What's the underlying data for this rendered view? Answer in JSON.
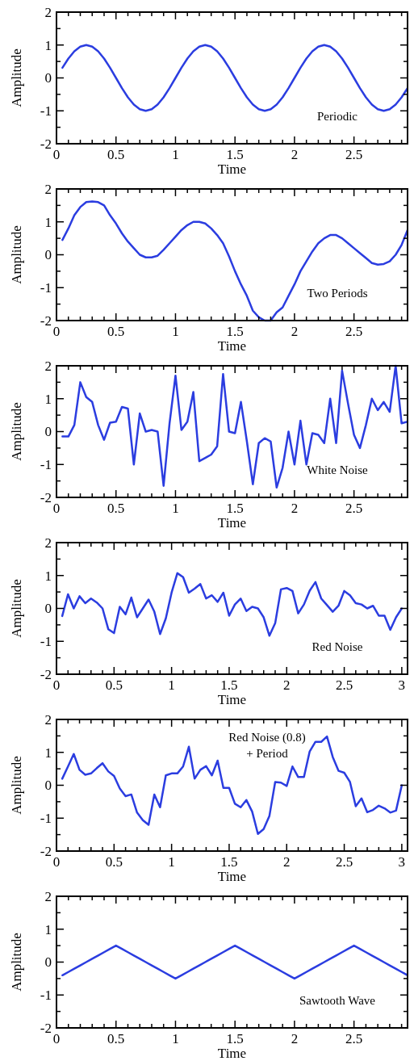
{
  "chart_data": [
    {
      "type": "line",
      "xlabel": "Time",
      "ylabel": "Amplitude",
      "color": "#2b3de0",
      "xlim": [
        0,
        2.95
      ],
      "ylim": [
        -2,
        2
      ],
      "xticks": [
        0,
        {
          "value": 0.1,
          "label": null
        },
        {
          "value": 0.2,
          "label": null
        },
        {
          "value": 0.3,
          "label": null
        },
        {
          "value": 0.4,
          "label": null
        },
        0.5,
        {
          "value": 0.6,
          "label": null
        },
        {
          "value": 0.7,
          "label": null
        },
        {
          "value": 0.8,
          "label": null
        },
        {
          "value": 0.9,
          "label": null
        },
        1,
        {
          "value": 1.1,
          "label": null
        },
        {
          "value": 1.2,
          "label": null
        },
        {
          "value": 1.3,
          "label": null
        },
        {
          "value": 1.4,
          "label": null
        },
        1.5,
        {
          "value": 1.6,
          "label": null
        },
        {
          "value": 1.7,
          "label": null
        },
        {
          "value": 1.8,
          "label": null
        },
        {
          "value": 1.9,
          "label": null
        },
        2,
        {
          "value": 2.1,
          "label": null
        },
        {
          "value": 2.2,
          "label": null
        },
        {
          "value": 2.3,
          "label": null
        },
        {
          "value": 2.4,
          "label": null
        },
        2.5,
        {
          "value": 2.6,
          "label": null
        },
        {
          "value": 2.7,
          "label": null
        },
        {
          "value": 2.8,
          "label": null
        },
        {
          "value": 2.9,
          "label": null
        }
      ],
      "yticks": [
        -2,
        {
          "value": -1.5,
          "label": null
        },
        -1,
        {
          "value": -0.5,
          "label": null
        },
        0,
        {
          "value": 0.5,
          "label": null
        },
        1,
        {
          "value": 1.5,
          "label": null
        },
        2
      ],
      "annotations": [
        "Periodic"
      ],
      "x": [
        0.05,
        0.1,
        0.15,
        0.2,
        0.25,
        0.3,
        0.35,
        0.4,
        0.45,
        0.5,
        0.55,
        0.6,
        0.65,
        0.7,
        0.75,
        0.8,
        0.85,
        0.9,
        0.95,
        1,
        1.05,
        1.1,
        1.15,
        1.2,
        1.25,
        1.3,
        1.35,
        1.4,
        1.45,
        1.5,
        1.55,
        1.6,
        1.65,
        1.7,
        1.75,
        1.8,
        1.85,
        1.9,
        1.95,
        2,
        2.05,
        2.1,
        2.15,
        2.2,
        2.25,
        2.3,
        2.35,
        2.4,
        2.45,
        2.5,
        2.55,
        2.6,
        2.65,
        2.7,
        2.75,
        2.8,
        2.85,
        2.9,
        2.95
      ],
      "values": [
        0.31,
        0.59,
        0.81,
        0.95,
        1,
        0.95,
        0.81,
        0.59,
        0.31,
        0,
        -0.31,
        -0.59,
        -0.81,
        -0.95,
        -1,
        -0.95,
        -0.81,
        -0.59,
        -0.31,
        0,
        0.31,
        0.59,
        0.81,
        0.95,
        1,
        0.95,
        0.81,
        0.59,
        0.31,
        0,
        -0.31,
        -0.59,
        -0.81,
        -0.95,
        -1,
        -0.95,
        -0.81,
        -0.59,
        -0.31,
        0,
        0.31,
        0.59,
        0.81,
        0.95,
        1,
        0.95,
        0.81,
        0.59,
        0.31,
        0,
        -0.31,
        -0.59,
        -0.81,
        -0.95,
        -1,
        -0.95,
        -0.81,
        -0.59,
        -0.31
      ]
    },
    {
      "type": "line",
      "xlabel": "Time",
      "ylabel": "Amplitude",
      "color": "#2b3de0",
      "xlim": [
        0,
        2.95
      ],
      "ylim": [
        -2,
        2
      ],
      "xticks": [
        0,
        {
          "value": 0.1,
          "label": null
        },
        {
          "value": 0.2,
          "label": null
        },
        {
          "value": 0.3,
          "label": null
        },
        {
          "value": 0.4,
          "label": null
        },
        0.5,
        {
          "value": 0.6,
          "label": null
        },
        {
          "value": 0.7,
          "label": null
        },
        {
          "value": 0.8,
          "label": null
        },
        {
          "value": 0.9,
          "label": null
        },
        1,
        {
          "value": 1.1,
          "label": null
        },
        {
          "value": 1.2,
          "label": null
        },
        {
          "value": 1.3,
          "label": null
        },
        {
          "value": 1.4,
          "label": null
        },
        1.5,
        {
          "value": 1.6,
          "label": null
        },
        {
          "value": 1.7,
          "label": null
        },
        {
          "value": 1.8,
          "label": null
        },
        {
          "value": 1.9,
          "label": null
        },
        2,
        {
          "value": 2.1,
          "label": null
        },
        {
          "value": 2.2,
          "label": null
        },
        {
          "value": 2.3,
          "label": null
        },
        {
          "value": 2.4,
          "label": null
        },
        2.5,
        {
          "value": 2.6,
          "label": null
        },
        {
          "value": 2.7,
          "label": null
        },
        {
          "value": 2.8,
          "label": null
        },
        {
          "value": 2.9,
          "label": null
        }
      ],
      "yticks": [
        -2,
        {
          "value": -1.5,
          "label": null
        },
        -1,
        {
          "value": -0.5,
          "label": null
        },
        0,
        {
          "value": 0.5,
          "label": null
        },
        1,
        {
          "value": 1.5,
          "label": null
        },
        2
      ],
      "annotations": [
        "Two Periods"
      ],
      "x": [
        0.05,
        0.1,
        0.15,
        0.2,
        0.25,
        0.3,
        0.35,
        0.4,
        0.45,
        0.5,
        0.55,
        0.6,
        0.65,
        0.7,
        0.75,
        0.8,
        0.85,
        0.9,
        0.95,
        1,
        1.05,
        1.1,
        1.15,
        1.2,
        1.25,
        1.3,
        1.35,
        1.4,
        1.45,
        1.5,
        1.55,
        1.6,
        1.65,
        1.7,
        1.75,
        1.8,
        1.85,
        1.9,
        1.95,
        2,
        2.05,
        2.1,
        2.15,
        2.2,
        2.25,
        2.3,
        2.35,
        2.4,
        2.45,
        2.5,
        2.55,
        2.6,
        2.65,
        2.7,
        2.75,
        2.8,
        2.85,
        2.9,
        2.95
      ],
      "values": [
        0.45,
        0.8,
        1.2,
        1.45,
        1.6,
        1.62,
        1.6,
        1.5,
        1.2,
        0.95,
        0.65,
        0.4,
        0.2,
        0,
        -0.08,
        -0.08,
        -0.03,
        0.15,
        0.35,
        0.55,
        0.75,
        0.9,
        1,
        1,
        0.95,
        0.8,
        0.6,
        0.35,
        -0.05,
        -0.5,
        -0.9,
        -1.25,
        -1.7,
        -1.9,
        -2,
        -2,
        -1.75,
        -1.6,
        -1.25,
        -0.9,
        -0.5,
        -0.2,
        0.1,
        0.35,
        0.5,
        0.6,
        0.6,
        0.5,
        0.35,
        0.2,
        0.05,
        -0.1,
        -0.25,
        -0.3,
        -0.28,
        -0.2,
        0,
        0.3,
        0.75
      ]
    },
    {
      "type": "line",
      "xlabel": "Time",
      "ylabel": "Amplitude",
      "color": "#2b3de0",
      "xlim": [
        0,
        2.95
      ],
      "ylim": [
        -2,
        2
      ],
      "xticks": [
        0,
        {
          "value": 0.1,
          "label": null
        },
        {
          "value": 0.2,
          "label": null
        },
        {
          "value": 0.3,
          "label": null
        },
        {
          "value": 0.4,
          "label": null
        },
        0.5,
        {
          "value": 0.6,
          "label": null
        },
        {
          "value": 0.7,
          "label": null
        },
        {
          "value": 0.8,
          "label": null
        },
        {
          "value": 0.9,
          "label": null
        },
        1,
        {
          "value": 1.1,
          "label": null
        },
        {
          "value": 1.2,
          "label": null
        },
        {
          "value": 1.3,
          "label": null
        },
        {
          "value": 1.4,
          "label": null
        },
        1.5,
        {
          "value": 1.6,
          "label": null
        },
        {
          "value": 1.7,
          "label": null
        },
        {
          "value": 1.8,
          "label": null
        },
        {
          "value": 1.9,
          "label": null
        },
        2,
        {
          "value": 2.1,
          "label": null
        },
        {
          "value": 2.2,
          "label": null
        },
        {
          "value": 2.3,
          "label": null
        },
        {
          "value": 2.4,
          "label": null
        },
        2.5,
        {
          "value": 2.6,
          "label": null
        },
        {
          "value": 2.7,
          "label": null
        },
        {
          "value": 2.8,
          "label": null
        },
        {
          "value": 2.9,
          "label": null
        }
      ],
      "yticks": [
        -2,
        {
          "value": -1.5,
          "label": null
        },
        -1,
        {
          "value": -0.5,
          "label": null
        },
        0,
        {
          "value": 0.5,
          "label": null
        },
        1,
        {
          "value": 1.5,
          "label": null
        },
        2
      ],
      "annotations": [
        "White Noise"
      ],
      "x": [
        0.05,
        0.1,
        0.15,
        0.2,
        0.25,
        0.3,
        0.35,
        0.4,
        0.45,
        0.5,
        0.55,
        0.6,
        0.65,
        0.7,
        0.75,
        0.8,
        0.85,
        0.9,
        0.95,
        1,
        1.05,
        1.1,
        1.15,
        1.2,
        1.25,
        1.3,
        1.35,
        1.4,
        1.45,
        1.5,
        1.55,
        1.6,
        1.65,
        1.7,
        1.75,
        1.8,
        1.85,
        1.9,
        1.95,
        2,
        2.05,
        2.1,
        2.15,
        2.2,
        2.25,
        2.3,
        2.35,
        2.4,
        2.45,
        2.5,
        2.55,
        2.6,
        2.65,
        2.7,
        2.75,
        2.8,
        2.85,
        2.9,
        2.95
      ],
      "values": [
        -0.15,
        -0.15,
        0.2,
        1.5,
        1.05,
        0.9,
        0.2,
        -0.25,
        0.27,
        0.3,
        0.75,
        0.7,
        -1,
        0.55,
        0,
        0.05,
        0,
        -1.65,
        0.25,
        1.7,
        0.05,
        0.3,
        1.2,
        -0.9,
        -0.8,
        -0.7,
        -0.45,
        1.75,
        0,
        -0.05,
        0.9,
        -0.3,
        -1.6,
        -0.35,
        -0.2,
        -0.3,
        -1.7,
        -1.1,
        0,
        -1,
        0.33,
        -1,
        -0.05,
        -0.1,
        -0.35,
        1,
        -0.35,
        1.85,
        0.85,
        -0.1,
        -0.5,
        0.2,
        1,
        0.65,
        0.9,
        0.6,
        2,
        0.25,
        0.3
      ]
    },
    {
      "type": "line",
      "xlabel": "Time",
      "ylabel": "Amplitude",
      "color": "#2b3de0",
      "xlim": [
        0,
        3.05
      ],
      "ylim": [
        -2,
        2
      ],
      "xticks": [
        0,
        {
          "value": 0.1,
          "label": null
        },
        {
          "value": 0.2,
          "label": null
        },
        {
          "value": 0.3,
          "label": null
        },
        {
          "value": 0.4,
          "label": null
        },
        0.5,
        {
          "value": 0.6,
          "label": null
        },
        {
          "value": 0.7,
          "label": null
        },
        {
          "value": 0.8,
          "label": null
        },
        {
          "value": 0.9,
          "label": null
        },
        1,
        {
          "value": 1.1,
          "label": null
        },
        {
          "value": 1.2,
          "label": null
        },
        {
          "value": 1.3,
          "label": null
        },
        {
          "value": 1.4,
          "label": null
        },
        1.5,
        {
          "value": 1.6,
          "label": null
        },
        {
          "value": 1.7,
          "label": null
        },
        {
          "value": 1.8,
          "label": null
        },
        {
          "value": 1.9,
          "label": null
        },
        2,
        {
          "value": 2.1,
          "label": null
        },
        {
          "value": 2.2,
          "label": null
        },
        {
          "value": 2.3,
          "label": null
        },
        {
          "value": 2.4,
          "label": null
        },
        2.5,
        {
          "value": 2.6,
          "label": null
        },
        {
          "value": 2.7,
          "label": null
        },
        {
          "value": 2.8,
          "label": null
        },
        {
          "value": 2.9,
          "label": null
        },
        3
      ],
      "yticks": [
        -2,
        {
          "value": -1.5,
          "label": null
        },
        -1,
        {
          "value": -0.5,
          "label": null
        },
        0,
        {
          "value": 0.5,
          "label": null
        },
        1,
        {
          "value": 1.5,
          "label": null
        },
        2
      ],
      "annotations": [
        "Red Noise"
      ],
      "x": [
        0.05,
        0.1,
        0.15,
        0.2,
        0.25,
        0.3,
        0.35,
        0.4,
        0.45,
        0.5,
        0.55,
        0.6,
        0.65,
        0.7,
        0.75,
        0.8,
        0.85,
        0.9,
        0.95,
        1,
        1.05,
        1.1,
        1.15,
        1.2,
        1.25,
        1.3,
        1.35,
        1.4,
        1.45,
        1.5,
        1.55,
        1.6,
        1.65,
        1.7,
        1.75,
        1.8,
        1.85,
        1.9,
        1.95,
        2,
        2.05,
        2.1,
        2.15,
        2.2,
        2.25,
        2.3,
        2.35,
        2.4,
        2.45,
        2.5,
        2.55,
        2.6,
        2.65,
        2.7,
        2.75,
        2.8,
        2.85,
        2.9,
        2.95,
        3
      ],
      "values": [
        -0.23,
        0.43,
        0,
        0.37,
        0.16,
        0.3,
        0.18,
        0,
        -0.63,
        -0.75,
        0.05,
        -0.18,
        0.33,
        -0.27,
        0,
        0.27,
        -0.1,
        -0.78,
        -0.3,
        0.48,
        1.07,
        0.95,
        0.48,
        0.6,
        0.74,
        0.3,
        0.4,
        0.2,
        0.48,
        -0.22,
        0.12,
        0.3,
        -0.08,
        0.05,
        0,
        -0.27,
        -0.83,
        -0.45,
        0.58,
        0.62,
        0.53,
        -0.15,
        0.12,
        0.54,
        0.8,
        0.3,
        0.1,
        -0.1,
        0.08,
        0.53,
        0.4,
        0.16,
        0.12,
        0,
        0.08,
        -0.22,
        -0.22,
        -0.65,
        -0.27,
        0
      ]
    },
    {
      "type": "line",
      "xlabel": "Time",
      "ylabel": "Amplitude",
      "color": "#2b3de0",
      "xlim": [
        0,
        3.05
      ],
      "ylim": [
        -2,
        2
      ],
      "xticks": [
        0,
        {
          "value": 0.1,
          "label": null
        },
        {
          "value": 0.2,
          "label": null
        },
        {
          "value": 0.3,
          "label": null
        },
        {
          "value": 0.4,
          "label": null
        },
        0.5,
        {
          "value": 0.6,
          "label": null
        },
        {
          "value": 0.7,
          "label": null
        },
        {
          "value": 0.8,
          "label": null
        },
        {
          "value": 0.9,
          "label": null
        },
        1,
        {
          "value": 1.1,
          "label": null
        },
        {
          "value": 1.2,
          "label": null
        },
        {
          "value": 1.3,
          "label": null
        },
        {
          "value": 1.4,
          "label": null
        },
        1.5,
        {
          "value": 1.6,
          "label": null
        },
        {
          "value": 1.7,
          "label": null
        },
        {
          "value": 1.8,
          "label": null
        },
        {
          "value": 1.9,
          "label": null
        },
        2,
        {
          "value": 2.1,
          "label": null
        },
        {
          "value": 2.2,
          "label": null
        },
        {
          "value": 2.3,
          "label": null
        },
        {
          "value": 2.4,
          "label": null
        },
        2.5,
        {
          "value": 2.6,
          "label": null
        },
        {
          "value": 2.7,
          "label": null
        },
        {
          "value": 2.8,
          "label": null
        },
        {
          "value": 2.9,
          "label": null
        },
        3
      ],
      "yticks": [
        -2,
        {
          "value": -1.5,
          "label": null
        },
        -1,
        {
          "value": -0.5,
          "label": null
        },
        0,
        {
          "value": 0.5,
          "label": null
        },
        1,
        {
          "value": 1.5,
          "label": null
        },
        2
      ],
      "annotations": [
        "Red Noise (0.8)\n+ Period"
      ],
      "x": [
        0.05,
        0.1,
        0.15,
        0.2,
        0.25,
        0.3,
        0.35,
        0.4,
        0.45,
        0.5,
        0.55,
        0.6,
        0.65,
        0.7,
        0.75,
        0.8,
        0.85,
        0.9,
        0.95,
        1,
        1.05,
        1.1,
        1.15,
        1.2,
        1.25,
        1.3,
        1.35,
        1.4,
        1.45,
        1.5,
        1.55,
        1.6,
        1.65,
        1.7,
        1.75,
        1.8,
        1.85,
        1.9,
        1.95,
        2,
        2.05,
        2.1,
        2.15,
        2.2,
        2.25,
        2.3,
        2.35,
        2.4,
        2.45,
        2.5,
        2.55,
        2.6,
        2.65,
        2.7,
        2.75,
        2.8,
        2.85,
        2.9,
        2.95,
        3
      ],
      "values": [
        0.2,
        0.57,
        0.95,
        0.47,
        0.32,
        0.36,
        0.52,
        0.67,
        0.42,
        0.28,
        -0.1,
        -0.33,
        -0.28,
        -0.83,
        -1.06,
        -1.2,
        -0.28,
        -0.67,
        0.3,
        0.36,
        0.36,
        0.57,
        1.17,
        0.2,
        0.47,
        0.58,
        0.3,
        0.75,
        -0.08,
        -0.08,
        -0.56,
        -0.67,
        -0.45,
        -0.8,
        -1.48,
        -1.33,
        -0.93,
        0.1,
        0.08,
        -0.02,
        0.57,
        0.25,
        0.25,
        1.03,
        1.32,
        1.32,
        1.48,
        0.86,
        0.44,
        0.38,
        0.1,
        -0.64,
        -0.4,
        -0.82,
        -0.75,
        -0.62,
        -0.7,
        -0.83,
        -0.77,
        0
      ]
    },
    {
      "type": "line",
      "xlabel": "Time",
      "ylabel": "Amplitude",
      "color": "#2b3de0",
      "xlim": [
        0,
        2.95
      ],
      "ylim": [
        -2,
        2
      ],
      "xticks": [
        0,
        {
          "value": 0.1,
          "label": null
        },
        {
          "value": 0.2,
          "label": null
        },
        {
          "value": 0.3,
          "label": null
        },
        {
          "value": 0.4,
          "label": null
        },
        0.5,
        {
          "value": 0.6,
          "label": null
        },
        {
          "value": 0.7,
          "label": null
        },
        {
          "value": 0.8,
          "label": null
        },
        {
          "value": 0.9,
          "label": null
        },
        1,
        {
          "value": 1.1,
          "label": null
        },
        {
          "value": 1.2,
          "label": null
        },
        {
          "value": 1.3,
          "label": null
        },
        {
          "value": 1.4,
          "label": null
        },
        1.5,
        {
          "value": 1.6,
          "label": null
        },
        {
          "value": 1.7,
          "label": null
        },
        {
          "value": 1.8,
          "label": null
        },
        {
          "value": 1.9,
          "label": null
        },
        2,
        {
          "value": 2.1,
          "label": null
        },
        {
          "value": 2.2,
          "label": null
        },
        {
          "value": 2.3,
          "label": null
        },
        {
          "value": 2.4,
          "label": null
        },
        2.5,
        {
          "value": 2.6,
          "label": null
        },
        {
          "value": 2.7,
          "label": null
        },
        {
          "value": 2.8,
          "label": null
        },
        {
          "value": 2.9,
          "label": null
        }
      ],
      "yticks": [
        -2,
        {
          "value": -1.5,
          "label": null
        },
        -1,
        {
          "value": -0.5,
          "label": null
        },
        0,
        {
          "value": 0.5,
          "label": null
        },
        1,
        {
          "value": 1.5,
          "label": null
        },
        2
      ],
      "annotations": [
        "Sawtooth Wave"
      ],
      "x": [
        0.05,
        0.1,
        0.15,
        0.2,
        0.25,
        0.3,
        0.35,
        0.4,
        0.45,
        0.5,
        0.55,
        0.6,
        0.65,
        0.7,
        0.75,
        0.8,
        0.85,
        0.9,
        0.95,
        1,
        1.05,
        1.1,
        1.15,
        1.2,
        1.25,
        1.3,
        1.35,
        1.4,
        1.45,
        1.5,
        1.55,
        1.6,
        1.65,
        1.7,
        1.75,
        1.8,
        1.85,
        1.9,
        1.95,
        2,
        2.05,
        2.1,
        2.15,
        2.2,
        2.25,
        2.3,
        2.35,
        2.4,
        2.45,
        2.5,
        2.55,
        2.6,
        2.65,
        2.7,
        2.75,
        2.8,
        2.85,
        2.9,
        2.95
      ],
      "values": [
        -0.4,
        -0.3,
        -0.2,
        -0.1,
        0,
        0.1,
        0.2,
        0.3,
        0.4,
        0.5,
        0.4,
        0.3,
        0.2,
        0.1,
        0,
        -0.1,
        -0.2,
        -0.3,
        -0.4,
        -0.5,
        -0.4,
        -0.3,
        -0.2,
        -0.1,
        0,
        0.1,
        0.2,
        0.3,
        0.4,
        0.5,
        0.4,
        0.3,
        0.2,
        0.1,
        0,
        -0.1,
        -0.2,
        -0.3,
        -0.4,
        -0.5,
        -0.4,
        -0.3,
        -0.2,
        -0.1,
        0,
        0.1,
        0.2,
        0.3,
        0.4,
        0.5,
        0.4,
        0.3,
        0.2,
        0.1,
        0,
        -0.1,
        -0.2,
        -0.3,
        -0.4
      ]
    }
  ]
}
